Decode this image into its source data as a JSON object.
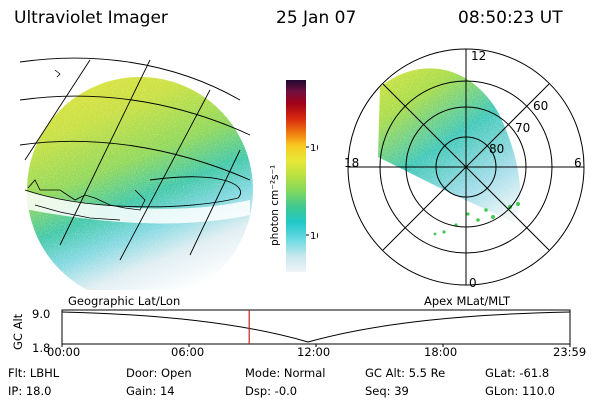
{
  "header": {
    "title": "Ultraviolet Imager",
    "date": "25 Jan 07",
    "time": "08:50:23 UT"
  },
  "colorbar": {
    "unit_label": "photon cm⁻²s⁻¹",
    "ticks": [
      "100",
      "10"
    ],
    "stops": [
      "#f0f4f8",
      "#c8e8ee",
      "#60d8e0",
      "#20c8c8",
      "#40c890",
      "#80d860",
      "#b8e040",
      "#e8e838",
      "#f8c820",
      "#f08010",
      "#d82810",
      "#a00018",
      "#701040",
      "#200830"
    ]
  },
  "polar_plot": {
    "mlt_labels": [
      "12",
      "18",
      "6",
      "0"
    ],
    "lat_labels": [
      "60",
      "70",
      "80"
    ]
  },
  "timeline": {
    "left_label": "Geographic Lat/Lon",
    "right_label": "Apex MLat/MLT",
    "y_axis_title": "GC Alt",
    "y_ticks": [
      "9.0",
      "1.8"
    ],
    "x_ticks": [
      "00:00",
      "06:00",
      "12:00",
      "18:00",
      "23:59"
    ],
    "marker_time": "08:50:23",
    "marker_color": "#cc2020"
  },
  "status": {
    "filter": "Flt: LBHL",
    "ip": "IP: 18.0",
    "door": "Door: Open",
    "gain": "Gain: 14",
    "mode": "Mode: Normal",
    "dsp": "Dsp:   -0.0",
    "gc_alt": "GC Alt: 5.5 Re",
    "seq": "Seq: 39",
    "glat": "GLat: -61.8",
    "glon": "GLon: 110.0"
  }
}
